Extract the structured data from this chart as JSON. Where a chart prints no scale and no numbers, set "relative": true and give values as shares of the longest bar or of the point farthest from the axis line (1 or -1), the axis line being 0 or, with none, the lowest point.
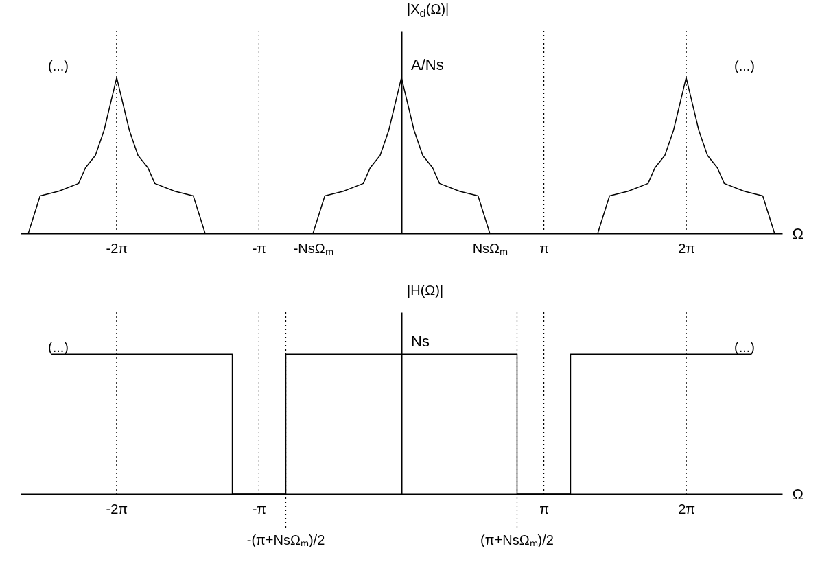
{
  "chart_data": [
    {
      "type": "line",
      "relative": true,
      "xlabel": "Ω",
      "ylabel": "|X$_{d}$(Ω)|",
      "xlim": [
        -8.4,
        8.4
      ],
      "xticks": [
        {
          "value": -6.283,
          "label": "-2π"
        },
        {
          "value": -3.142,
          "label": "-π"
        },
        {
          "value": -1.95,
          "label": "-NsΩₘ"
        },
        {
          "value": 1.95,
          "label": "NsΩₘ"
        },
        {
          "value": 3.142,
          "label": "π"
        },
        {
          "value": 6.283,
          "label": "2π"
        }
      ],
      "series": [
        {
          "color": "#000000",
          "x": [
            -8.23,
            -8.1,
            -7.97,
            -7.56,
            -7.12,
            -6.97,
            -6.75,
            -6.56,
            -6.28,
            -6.0,
            -5.81,
            -5.59,
            -5.44,
            -5.0,
            -4.59,
            -4.46,
            -4.33,
            -1.95,
            -1.82,
            -1.69,
            -1.28,
            -0.84,
            -0.69,
            -0.47,
            -0.28,
            0,
            0.28,
            0.47,
            0.69,
            0.84,
            1.28,
            1.69,
            1.82,
            1.95,
            4.33,
            4.46,
            4.59,
            5.0,
            5.44,
            5.59,
            5.81,
            6.0,
            6.28,
            6.56,
            6.75,
            6.97,
            7.12,
            7.56,
            7.97,
            8.1,
            8.23
          ],
          "values": [
            0,
            0.12,
            0.24,
            0.27,
            0.32,
            0.42,
            0.5,
            0.66,
            1,
            0.66,
            0.5,
            0.42,
            0.32,
            0.27,
            0.24,
            0.12,
            0,
            0,
            0.12,
            0.24,
            0.27,
            0.32,
            0.42,
            0.5,
            0.66,
            1,
            0.66,
            0.5,
            0.42,
            0.32,
            0.27,
            0.24,
            0.12,
            0,
            0,
            0.12,
            0.24,
            0.27,
            0.32,
            0.42,
            0.5,
            0.66,
            1,
            0.66,
            0.5,
            0.42,
            0.32,
            0.27,
            0.24,
            0.12,
            0
          ]
        }
      ],
      "ref_lines": [
        {
          "axis": "x",
          "value": -6.283,
          "line_style": "dotted",
          "color": "#000000"
        },
        {
          "axis": "x",
          "value": -3.142,
          "line_style": "dotted",
          "color": "#000000"
        },
        {
          "axis": "x",
          "value": 3.142,
          "line_style": "dotted",
          "color": "#000000"
        },
        {
          "axis": "x",
          "value": 6.283,
          "line_style": "dotted",
          "color": "#000000"
        }
      ],
      "annotations": [
        "(...)",
        "(...)",
        {
          "text": "A/Ns",
          "x": 0,
          "y": 1
        }
      ],
      "grid": false,
      "marker": "none",
      "line_style": "solid"
    },
    {
      "type": "line",
      "relative": true,
      "xlabel": "Ω",
      "ylabel": "|H(Ω)|",
      "xlim": [
        -8.4,
        8.4
      ],
      "xticks": [
        {
          "value": -6.283,
          "label": "-2π"
        },
        {
          "value": -3.142,
          "label": "-π"
        },
        {
          "value": 3.142,
          "label": "π"
        },
        {
          "value": 6.283,
          "label": "2π"
        }
      ],
      "series": [
        {
          "color": "#000000",
          "x": [
            -7.7,
            -3.73,
            -3.73,
            -2.55,
            -2.55,
            2.55,
            2.55,
            3.73,
            3.73,
            7.7
          ],
          "values": [
            1,
            1,
            0,
            0,
            1,
            1,
            0,
            0,
            1,
            1
          ]
        }
      ],
      "ref_lines": [
        {
          "axis": "x",
          "value": -6.283,
          "line_style": "dotted",
          "color": "#000000"
        },
        {
          "axis": "x",
          "value": -3.142,
          "line_style": "dotted",
          "color": "#000000"
        },
        {
          "axis": "x",
          "value": -2.55,
          "label": "-(π+NsΩₘ)/2",
          "line_style": "dotted",
          "color": "#000000"
        },
        {
          "axis": "x",
          "value": 2.55,
          "label": "(π+NsΩₘ)/2",
          "line_style": "dotted",
          "color": "#000000"
        },
        {
          "axis": "x",
          "value": 3.142,
          "line_style": "dotted",
          "color": "#000000"
        },
        {
          "axis": "x",
          "value": 6.283,
          "line_style": "dotted",
          "color": "#000000"
        }
      ],
      "annotations": [
        "(...)",
        "(...)",
        {
          "text": "Ns",
          "x": 0,
          "y": 1
        }
      ],
      "grid": false,
      "marker": "none",
      "line_style": "solid"
    }
  ]
}
